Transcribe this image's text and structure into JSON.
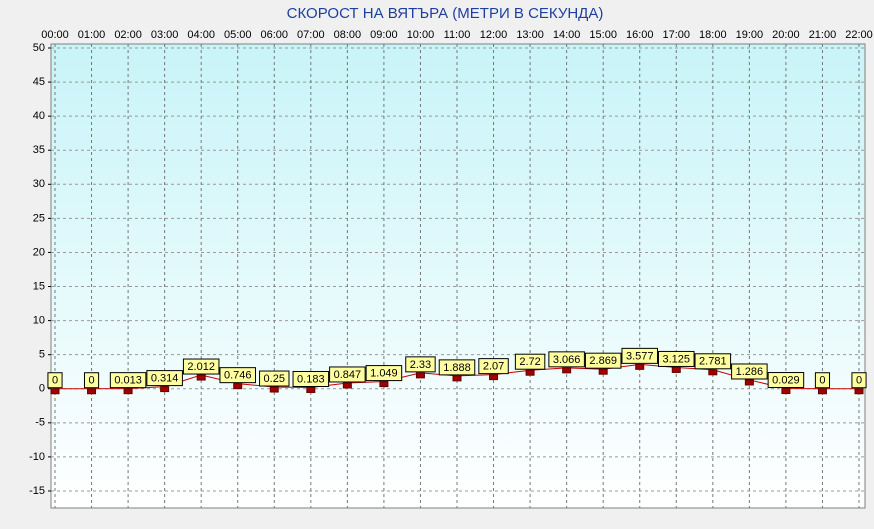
{
  "chart_data": {
    "type": "line",
    "title": "СКОРОСТ НА ВЯТЪРА (МЕТРИ В СЕКУНДА)",
    "categories": [
      "00:00",
      "01:00",
      "02:00",
      "03:00",
      "04:00",
      "05:00",
      "06:00",
      "07:00",
      "08:00",
      "09:00",
      "10:00",
      "11:00",
      "12:00",
      "13:00",
      "14:00",
      "15:00",
      "16:00",
      "17:00",
      "18:00",
      "19:00",
      "20:00",
      "21:00",
      "22:00"
    ],
    "values": [
      0,
      0,
      0.013,
      0.314,
      2.012,
      0.746,
      0.25,
      0.183,
      0.847,
      1.049,
      2.33,
      1.888,
      2.07,
      2.72,
      3.066,
      2.869,
      3.577,
      3.125,
      2.781,
      1.286,
      0.029,
      0,
      0
    ],
    "color": "#cc0000",
    "ylim": [
      -17.5,
      50
    ],
    "yticks": [
      -15,
      -10,
      -5,
      0,
      5,
      10,
      15,
      20,
      25,
      30,
      35,
      40,
      45,
      50
    ],
    "grid": true
  }
}
